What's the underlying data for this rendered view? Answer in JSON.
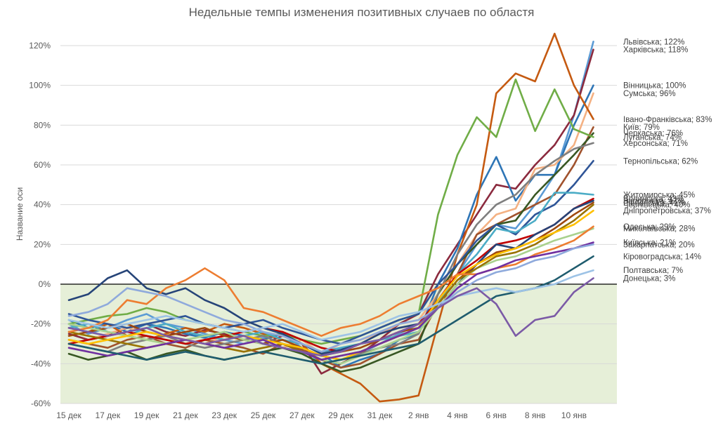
{
  "chart_data": {
    "type": "line",
    "title": "Недельные темпы изменения позитивных случаев по областя",
    "ylabel": "Название оси",
    "ylim": [
      -60,
      125
    ],
    "yticks": [
      -60,
      -40,
      -20,
      0,
      20,
      40,
      60,
      80,
      100,
      120
    ],
    "ytick_labels": [
      "-60%",
      "-40%",
      "-20%",
      "0%",
      "20%",
      "40%",
      "60%",
      "80%",
      "100%",
      "120%"
    ],
    "categories": [
      "15 дек",
      "16 дек",
      "17 дек",
      "18 дек",
      "19 дек",
      "20 дек",
      "21 дек",
      "22 дек",
      "23 дек",
      "24 дек",
      "25 дек",
      "26 дек",
      "27 дек",
      "28 дек",
      "29 дек",
      "30 дек",
      "31 дек",
      "1 янв",
      "2 янв",
      "3 янв",
      "4 янв",
      "5 янв",
      "6 янв",
      "7 янв",
      "8 янв",
      "9 янв",
      "10 янв",
      "11 янв"
    ],
    "x_tick_labels": [
      "15 дек",
      "17 дек",
      "19 дек",
      "21 дек",
      "23 дек",
      "25 дек",
      "27 дек",
      "29 дек",
      "31 дек",
      "2 янв",
      "4 янв",
      "6 янв",
      "8 янв",
      "10 янв"
    ],
    "shaded_region": {
      "from": -60,
      "to": 0,
      "color": "#e6efd8"
    },
    "grid": true,
    "series": [
      {
        "name": "Львівська",
        "end_label": "Львівська; 122%",
        "color": "#5b9bd5",
        "values": [
          -20,
          -25,
          -22,
          -18,
          -15,
          -20,
          -22,
          -25,
          -28,
          -30,
          -27,
          -25,
          -32,
          -40,
          -38,
          -35,
          -30,
          -25,
          -20,
          -10,
          5,
          20,
          30,
          28,
          40,
          55,
          85,
          122
        ]
      },
      {
        "name": "Харківська",
        "end_label": "Харківська; 118%",
        "color": "#8b2a3e",
        "values": [
          -25,
          -28,
          -26,
          -22,
          -20,
          -24,
          -26,
          -23,
          -25,
          -28,
          -30,
          -26,
          -30,
          -45,
          -40,
          -35,
          -28,
          -20,
          -15,
          5,
          20,
          35,
          50,
          48,
          60,
          70,
          85,
          118
        ]
      },
      {
        "name": "Вінницька",
        "end_label": "Вінницька; 100%",
        "color": "#2e75b6",
        "values": [
          -18,
          -22,
          -20,
          -24,
          -20,
          -22,
          -25,
          -27,
          -24,
          -26,
          -28,
          -25,
          -30,
          -35,
          -42,
          -38,
          -35,
          -28,
          -25,
          0,
          18,
          45,
          64,
          42,
          55,
          55,
          80,
          100
        ]
      },
      {
        "name": "Сумська",
        "end_label": "Сумська; 96%",
        "color": "#f4b183",
        "values": [
          -30,
          -28,
          -25,
          -22,
          -24,
          -26,
          -28,
          -30,
          -26,
          -28,
          -30,
          -32,
          -28,
          -35,
          -30,
          -28,
          -25,
          -20,
          -18,
          -5,
          10,
          25,
          35,
          38,
          58,
          60,
          70,
          96
        ]
      },
      {
        "name": "Івано-Франківська",
        "end_label": "Івано-Франківська; 83%",
        "color": "#c55a11",
        "values": [
          -22,
          -24,
          -20,
          -26,
          -28,
          -25,
          -22,
          -24,
          -20,
          -22,
          -25,
          -28,
          -30,
          -40,
          -45,
          -50,
          -59,
          -58,
          -56,
          -20,
          15,
          40,
          96,
          106,
          102,
          126,
          100,
          83
        ]
      },
      {
        "name": "Київ",
        "end_label": "Київ; 79%",
        "color": "#a0522d",
        "values": [
          -28,
          -30,
          -32,
          -28,
          -26,
          -30,
          -32,
          -28,
          -30,
          -32,
          -35,
          -30,
          -33,
          -38,
          -42,
          -40,
          -35,
          -30,
          -28,
          -10,
          5,
          25,
          30,
          35,
          40,
          45,
          60,
          79
        ]
      },
      {
        "name": "Черкаська",
        "end_label": "Черкаська; 76%",
        "color": "#385723",
        "values": [
          -35,
          -38,
          -36,
          -34,
          -38,
          -35,
          -33,
          -36,
          -38,
          -36,
          -34,
          -32,
          -35,
          -40,
          -44,
          -42,
          -38,
          -34,
          -30,
          -5,
          10,
          20,
          30,
          32,
          45,
          55,
          65,
          76
        ]
      },
      {
        "name": "Луганська",
        "end_label": "Луганська; 74%",
        "color": "#70ad47",
        "values": [
          -20,
          -18,
          -16,
          -15,
          -12,
          -14,
          -18,
          -20,
          -22,
          -24,
          -26,
          -25,
          -28,
          -30,
          -28,
          -26,
          -22,
          -18,
          -15,
          35,
          65,
          84,
          74,
          103,
          77,
          98,
          78,
          74
        ]
      },
      {
        "name": "Херсонська",
        "end_label": "Херсонська; 71%",
        "color": "#7f7f7f",
        "values": [
          -30,
          -32,
          -34,
          -30,
          -28,
          -26,
          -30,
          -32,
          -30,
          -28,
          -26,
          -30,
          -32,
          -36,
          -38,
          -35,
          -32,
          -30,
          -25,
          -5,
          15,
          30,
          40,
          45,
          55,
          62,
          68,
          71
        ]
      },
      {
        "name": "Тернопільська",
        "end_label": "Тернопільська; 62%",
        "color": "#2f5597",
        "values": [
          -15,
          -18,
          -20,
          -22,
          -20,
          -18,
          -16,
          -20,
          -22,
          -20,
          -18,
          -22,
          -25,
          -28,
          -30,
          -26,
          -22,
          -18,
          -15,
          0,
          10,
          22,
          30,
          25,
          35,
          40,
          50,
          62
        ]
      },
      {
        "name": "Житомирська",
        "end_label": "Житомирська; 45%",
        "color": "#4bacc6",
        "values": [
          -22,
          -20,
          -24,
          -26,
          -22,
          -20,
          -24,
          -26,
          -28,
          -26,
          -24,
          -28,
          -30,
          -34,
          -32,
          -30,
          -28,
          -26,
          -24,
          -10,
          5,
          15,
          28,
          26,
          32,
          46,
          46,
          45
        ]
      },
      {
        "name": "Волинська",
        "end_label": "Волинська; 43%",
        "color": "#c00000",
        "values": [
          -30,
          -28,
          -26,
          -24,
          -26,
          -28,
          -30,
          -28,
          -26,
          -24,
          -22,
          -24,
          -28,
          -32,
          -34,
          -30,
          -28,
          -24,
          -20,
          -8,
          5,
          12,
          20,
          22,
          25,
          30,
          38,
          43
        ]
      },
      {
        "name": "Запорізька",
        "end_label": "Запорізька; 42%",
        "color": "#264478",
        "values": [
          -8,
          -5,
          3,
          7,
          -2,
          -5,
          -2,
          -8,
          -12,
          -18,
          -22,
          -25,
          -30,
          -35,
          -33,
          -30,
          -25,
          -22,
          -20,
          -12,
          0,
          10,
          20,
          18,
          25,
          30,
          38,
          42
        ]
      },
      {
        "name": "Рівненська",
        "end_label": "Рівненська; 41%",
        "color": "#9e480e",
        "values": [
          -26,
          -24,
          -22,
          -20,
          -24,
          -26,
          -24,
          -22,
          -26,
          -28,
          -30,
          -28,
          -32,
          -36,
          -34,
          -32,
          -28,
          -24,
          -22,
          -10,
          2,
          10,
          16,
          18,
          22,
          28,
          35,
          41
        ]
      },
      {
        "name": "Миколаївська",
        "end_label": "Миколаївська; 28%",
        "color": "#a9d18e",
        "values": [
          -20,
          -22,
          -24,
          -26,
          -28,
          -30,
          -28,
          -26,
          -24,
          -28,
          -30,
          -32,
          -34,
          -38,
          -40,
          -36,
          -32,
          -28,
          -24,
          -12,
          0,
          8,
          12,
          14,
          18,
          22,
          25,
          28
        ]
      },
      {
        "name": "Чернівецька",
        "end_label": "Чернівецька; 40%",
        "color": "#997300",
        "values": [
          -24,
          -26,
          -28,
          -30,
          -32,
          -30,
          -28,
          -30,
          -32,
          -34,
          -32,
          -30,
          -34,
          -38,
          -36,
          -34,
          -30,
          -26,
          -22,
          -10,
          2,
          8,
          14,
          16,
          20,
          26,
          32,
          40
        ]
      },
      {
        "name": "Дніпропетровська",
        "end_label": "Дніпропетровська; 37%",
        "color": "#ffc000",
        "values": [
          -28,
          -30,
          -28,
          -26,
          -24,
          -26,
          -28,
          -30,
          -28,
          -26,
          -28,
          -30,
          -32,
          -36,
          -38,
          -34,
          -30,
          -26,
          -22,
          -8,
          4,
          10,
          15,
          18,
          22,
          26,
          30,
          37
        ]
      },
      {
        "name": "Одеська",
        "end_label": "Одеська; 29%",
        "color": "#ed7d31",
        "values": [
          -24,
          -22,
          -18,
          -8,
          -10,
          -2,
          2,
          8,
          2,
          -12,
          -14,
          -18,
          -22,
          -26,
          -22,
          -20,
          -16,
          -10,
          -6,
          -2,
          5,
          5,
          8,
          10,
          15,
          18,
          22,
          29
        ]
      },
      {
        "name": "Київська",
        "end_label": "Київська; 21%",
        "color": "#7030a0",
        "values": [
          -32,
          -34,
          -36,
          -34,
          -32,
          -30,
          -28,
          -30,
          -32,
          -30,
          -28,
          -32,
          -34,
          -38,
          -36,
          -34,
          -30,
          -26,
          -22,
          -12,
          -2,
          5,
          8,
          12,
          14,
          16,
          18,
          21
        ]
      },
      {
        "name": "Закарпатська",
        "end_label": "Закарпатська; 20%",
        "color": "#8faadc",
        "values": [
          -16,
          -14,
          -10,
          -2,
          -4,
          -6,
          -10,
          -14,
          -18,
          -20,
          -24,
          -26,
          -30,
          -34,
          -30,
          -28,
          -24,
          -20,
          -18,
          -12,
          -4,
          2,
          6,
          8,
          12,
          14,
          18,
          20
        ]
      },
      {
        "name": "Кіровоградська",
        "end_label": "Кіровоградська; 14%",
        "color": "#1f5c6e",
        "values": [
          -30,
          -32,
          -34,
          -36,
          -38,
          -36,
          -34,
          -36,
          -38,
          -36,
          -34,
          -36,
          -38,
          -40,
          -38,
          -36,
          -34,
          -32,
          -30,
          -24,
          -18,
          -12,
          -6,
          -4,
          -2,
          2,
          8,
          14
        ]
      },
      {
        "name": "Полтавська",
        "end_label": "Полтавська; 7%",
        "color": "#9dc3e6",
        "values": [
          -18,
          -20,
          -22,
          -20,
          -18,
          -16,
          -18,
          -20,
          -22,
          -24,
          -22,
          -20,
          -24,
          -28,
          -26,
          -24,
          -20,
          -16,
          -14,
          -10,
          -6,
          -4,
          -2,
          -4,
          -2,
          0,
          4,
          7
        ]
      },
      {
        "name": "Донецька",
        "end_label": "Донецька; 3%",
        "color": "#7b5aa6",
        "values": [
          -22,
          -24,
          -26,
          -24,
          -22,
          -26,
          -28,
          -30,
          -28,
          -26,
          -30,
          -32,
          -34,
          -36,
          -34,
          -30,
          -28,
          -24,
          -20,
          -12,
          -6,
          -2,
          -10,
          -26,
          -18,
          -16,
          -4,
          3
        ]
      }
    ]
  }
}
